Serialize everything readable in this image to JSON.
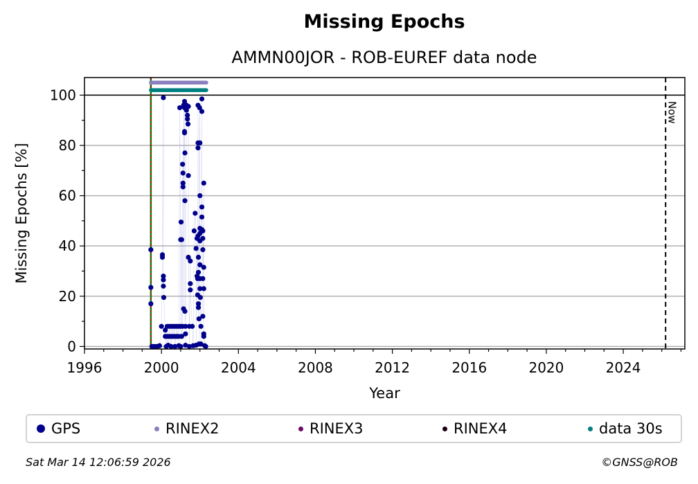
{
  "title": "Missing Epochs",
  "subtitle": "AMMN00JOR - ROB-EUREF data node",
  "chart_data": {
    "type": "scatter",
    "title": "Missing Epochs",
    "subtitle": "AMMN00JOR - ROB-EUREF data node",
    "xlabel": "Year",
    "ylabel": "Missing Epochs [%]",
    "xlim": [
      1996.0,
      2027.2
    ],
    "ylim": [
      -1,
      107
    ],
    "x_ticks": [
      1996,
      2000,
      2004,
      2008,
      2012,
      2016,
      2020,
      2024
    ],
    "x_tick_labels": [
      "1996",
      "2000",
      "2004",
      "2008",
      "2012",
      "2016",
      "2020",
      "2024"
    ],
    "y_ticks": [
      0,
      20,
      40,
      60,
      80,
      100
    ],
    "y_tick_labels": [
      "0",
      "20",
      "40",
      "60",
      "80",
      "100"
    ],
    "grid": "horizontal",
    "now_label": "Now",
    "now_x": 2026.2,
    "reference_line_y": 100,
    "start_x": 1999.45,
    "legend_position": "bottom",
    "series": [
      {
        "name": "GPS",
        "color": "#00008b",
        "marker": "dot",
        "points": [
          [
            1999.45,
            38.5
          ],
          [
            1999.45,
            23.5
          ],
          [
            1999.45,
            17
          ],
          [
            1999.5,
            0
          ],
          [
            1999.6,
            0
          ],
          [
            1999.7,
            0
          ],
          [
            1999.8,
            0
          ],
          [
            1999.9,
            0.3
          ],
          [
            2000.0,
            8
          ],
          [
            2000.05,
            36.5
          ],
          [
            2000.05,
            35.5
          ],
          [
            2000.1,
            99
          ],
          [
            2000.1,
            28
          ],
          [
            2000.1,
            26.5
          ],
          [
            2000.1,
            24
          ],
          [
            2000.12,
            19.5
          ],
          [
            2000.2,
            6.5
          ],
          [
            2000.2,
            4
          ],
          [
            2000.25,
            0
          ],
          [
            2000.3,
            8
          ],
          [
            2000.3,
            4
          ],
          [
            2000.35,
            0.5
          ],
          [
            2000.4,
            8
          ],
          [
            2000.4,
            4
          ],
          [
            2000.5,
            8
          ],
          [
            2000.5,
            4
          ],
          [
            2000.5,
            0
          ],
          [
            2000.6,
            8
          ],
          [
            2000.6,
            4
          ],
          [
            2000.7,
            8
          ],
          [
            2000.7,
            4
          ],
          [
            2000.7,
            0
          ],
          [
            2000.8,
            8
          ],
          [
            2000.8,
            4
          ],
          [
            2000.9,
            8
          ],
          [
            2000.9,
            4
          ],
          [
            2000.95,
            95
          ],
          [
            2001.0,
            42.5
          ],
          [
            2001.0,
            8
          ],
          [
            2001.02,
            49.5
          ],
          [
            2001.05,
            42.5
          ],
          [
            2001.05,
            4
          ],
          [
            2001.1,
            8
          ],
          [
            2001.1,
            72.5
          ],
          [
            2001.12,
            69
          ],
          [
            2001.12,
            65
          ],
          [
            2001.12,
            63.5
          ],
          [
            2001.15,
            96
          ],
          [
            2001.15,
            15
          ],
          [
            2001.2,
            97.5
          ],
          [
            2001.2,
            95
          ],
          [
            2001.2,
            85.5
          ],
          [
            2001.2,
            85
          ],
          [
            2001.22,
            77
          ],
          [
            2001.22,
            58
          ],
          [
            2001.22,
            14
          ],
          [
            2001.25,
            8
          ],
          [
            2001.25,
            5
          ],
          [
            2001.25,
            0.5
          ],
          [
            2001.3,
            96
          ],
          [
            2001.3,
            94
          ],
          [
            2001.35,
            92
          ],
          [
            2001.35,
            90.5
          ],
          [
            2001.38,
            88.5
          ],
          [
            2001.4,
            95.5
          ],
          [
            2001.4,
            68
          ],
          [
            2001.4,
            35.5
          ],
          [
            2001.45,
            8
          ],
          [
            2001.5,
            34
          ],
          [
            2001.5,
            25
          ],
          [
            2001.5,
            22.5
          ],
          [
            2001.6,
            8
          ],
          [
            2001.65,
            0.3
          ],
          [
            2001.7,
            46
          ],
          [
            2001.75,
            53
          ],
          [
            2001.8,
            39
          ],
          [
            2001.85,
            43
          ],
          [
            2001.85,
            28
          ],
          [
            2001.88,
            27
          ],
          [
            2001.88,
            20.5
          ],
          [
            2001.9,
            96
          ],
          [
            2001.9,
            81
          ],
          [
            2001.9,
            79
          ],
          [
            2001.9,
            44
          ],
          [
            2001.92,
            35.5
          ],
          [
            2001.92,
            29.5
          ],
          [
            2001.92,
            17
          ],
          [
            2001.92,
            15.5
          ],
          [
            2001.95,
            11
          ],
          [
            2001.95,
            1
          ],
          [
            2001.98,
            95
          ],
          [
            2002.0,
            81
          ],
          [
            2002.0,
            60
          ],
          [
            2002.0,
            47
          ],
          [
            2002.0,
            45
          ],
          [
            2002.0,
            42
          ],
          [
            2002.0,
            32.5
          ],
          [
            2002.0,
            27
          ],
          [
            2002.0,
            23
          ],
          [
            2002.02,
            19.5
          ],
          [
            2002.05,
            8
          ],
          [
            2002.05,
            1
          ],
          [
            2002.1,
            93.5
          ],
          [
            2002.1,
            98.5
          ],
          [
            2002.1,
            55.5
          ],
          [
            2002.1,
            51.5
          ],
          [
            2002.1,
            46.5
          ],
          [
            2002.15,
            46
          ],
          [
            2002.15,
            38.5
          ],
          [
            2002.15,
            43
          ],
          [
            2002.15,
            27
          ],
          [
            2002.15,
            12
          ],
          [
            2002.2,
            65
          ],
          [
            2002.2,
            31.5
          ],
          [
            2002.2,
            23
          ],
          [
            2002.2,
            5
          ],
          [
            2002.2,
            4
          ],
          [
            2002.25,
            0.3
          ],
          [
            2002.3,
            0
          ],
          [
            2001.0,
            0
          ],
          [
            2000.9,
            0.3
          ],
          [
            2001.45,
            0
          ],
          [
            2001.8,
            0.5
          ]
        ]
      },
      {
        "name": "RINEX2",
        "color": "#8a7fbf",
        "marker": "dot",
        "range_x": [
          1999.45,
          2002.35
        ],
        "y": 105
      },
      {
        "name": "RINEX3",
        "color": "#6a0a6a",
        "marker": "dot"
      },
      {
        "name": "RINEX4",
        "color": "#1a0010",
        "marker": "dot"
      },
      {
        "name": "data 30s",
        "color": "#008080",
        "marker": "dot",
        "range_x": [
          1999.45,
          2002.35
        ],
        "y": 102
      }
    ]
  },
  "legend": {
    "items": [
      {
        "label": "GPS",
        "color": "#00008b"
      },
      {
        "label": "RINEX2",
        "color": "#8a7fbf"
      },
      {
        "label": "RINEX3",
        "color": "#6a0a6a"
      },
      {
        "label": "RINEX4",
        "color": "#1a0010"
      },
      {
        "label": "data 30s",
        "color": "#008080"
      }
    ]
  },
  "footer": {
    "timestamp": "Sat Mar 14 12:06:59 2026",
    "copyright": "©GNSS@ROB"
  }
}
